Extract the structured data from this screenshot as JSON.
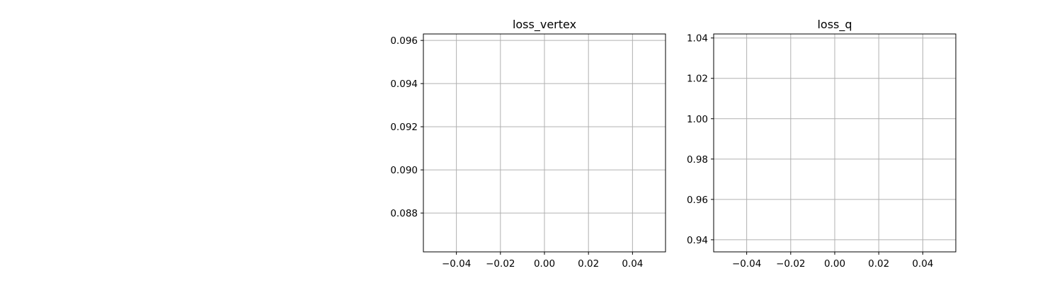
{
  "chart_data": [
    {
      "type": "line",
      "title": "loss_vertex",
      "xlabel": "",
      "ylabel": "",
      "xlim": [
        -0.055,
        0.055
      ],
      "ylim": [
        0.0862,
        0.0963
      ],
      "xticks": [
        -0.04,
        -0.02,
        0.0,
        0.02,
        0.04
      ],
      "xtick_labels": [
        "−0.04",
        "−0.02",
        "0.00",
        "0.02",
        "0.04"
      ],
      "yticks": [
        0.088,
        0.09,
        0.092,
        0.094,
        0.096
      ],
      "ytick_labels": [
        "0.088",
        "0.090",
        "0.092",
        "0.094",
        "0.096"
      ],
      "grid": true,
      "series": []
    },
    {
      "type": "line",
      "title": "loss_q",
      "xlabel": "",
      "ylabel": "",
      "xlim": [
        -0.055,
        0.055
      ],
      "ylim": [
        0.934,
        1.042
      ],
      "xticks": [
        -0.04,
        -0.02,
        0.0,
        0.02,
        0.04
      ],
      "xtick_labels": [
        "−0.04",
        "−0.02",
        "0.00",
        "0.02",
        "0.04"
      ],
      "yticks": [
        0.94,
        0.96,
        0.98,
        1.0,
        1.02,
        1.04
      ],
      "ytick_labels": [
        "0.94",
        "0.96",
        "0.98",
        "1.00",
        "1.02",
        "1.04"
      ],
      "grid": true,
      "series": []
    }
  ]
}
